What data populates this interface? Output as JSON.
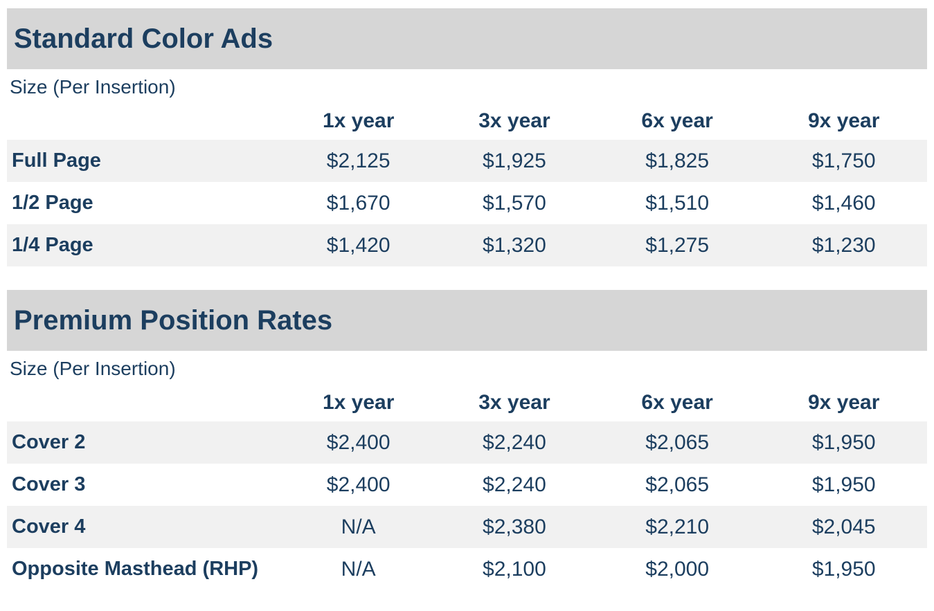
{
  "colors": {
    "text_navy": "#1C3E5F",
    "banner_gray": "#D6D6D6",
    "row_shade": "#F1F1F1",
    "page_background": "#FFFFFF"
  },
  "sections": [
    {
      "title": "Standard Color Ads",
      "subtitle": "Size (Per Insertion)",
      "columns": [
        "1x year",
        "3x year",
        "6x year",
        "9x year"
      ],
      "rows": [
        {
          "label": "Full Page",
          "values": [
            "$2,125",
            "$1,925",
            "$1,825",
            "$1,750"
          ]
        },
        {
          "label": "1/2 Page",
          "values": [
            "$1,670",
            "$1,570",
            "$1,510",
            "$1,460"
          ]
        },
        {
          "label": "1/4 Page",
          "values": [
            "$1,420",
            "$1,320",
            "$1,275",
            "$1,230"
          ]
        }
      ]
    },
    {
      "title": "Premium Position Rates",
      "subtitle": "Size (Per Insertion)",
      "columns": [
        "1x year",
        "3x year",
        "6x year",
        "9x year"
      ],
      "rows": [
        {
          "label": "Cover 2",
          "values": [
            "$2,400",
            "$2,240",
            "$2,065",
            "$1,950"
          ]
        },
        {
          "label": "Cover 3",
          "values": [
            "$2,400",
            "$2,240",
            "$2,065",
            "$1,950"
          ]
        },
        {
          "label": "Cover 4",
          "values": [
            "N/A",
            "$2,380",
            "$2,210",
            "$2,045"
          ]
        },
        {
          "label": "Opposite Masthead (RHP)",
          "values": [
            "N/A",
            "$2,100",
            "$2,000",
            "$1,950"
          ]
        }
      ]
    }
  ]
}
